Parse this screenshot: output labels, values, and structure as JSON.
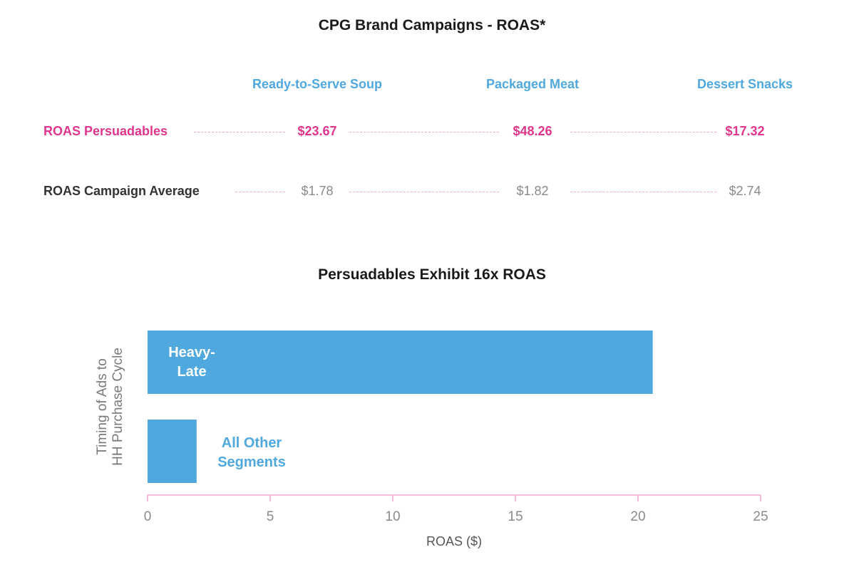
{
  "table": {
    "title": "CPG Brand Campaigns - ROAS*",
    "columns": [
      "Ready-to-Serve Soup",
      "Packaged Meat",
      "Dessert Snacks"
    ],
    "rows": [
      {
        "label": "ROAS Persuadables",
        "values": [
          "$23.67",
          "$48.26",
          "$17.32"
        ]
      },
      {
        "label": "ROAS Campaign Average",
        "values": [
          "$1.78",
          "$1.82",
          "$2.74"
        ]
      }
    ]
  },
  "chart_data": {
    "type": "bar",
    "orientation": "horizontal",
    "title": "Persuadables Exhibit 16x ROAS",
    "categories": [
      "Heavy-Late",
      "All Other Segments"
    ],
    "category_labels": [
      [
        "Heavy-",
        "Late"
      ],
      [
        "All Other",
        "Segments"
      ]
    ],
    "values": [
      20.6,
      2.0
    ],
    "xlabel": "ROAS ($)",
    "ylabel_lines": [
      "Timing of Ads to",
      "HH Purchase Cycle"
    ],
    "xlim": [
      0,
      25
    ],
    "xticks": [
      0,
      5,
      10,
      15,
      20,
      25
    ],
    "grid": false,
    "legend": "none"
  },
  "colors": {
    "accent_blue": "#4fa8de",
    "persuadable_pink": "#e0358c",
    "axis_pink": "#f0a9cf"
  }
}
